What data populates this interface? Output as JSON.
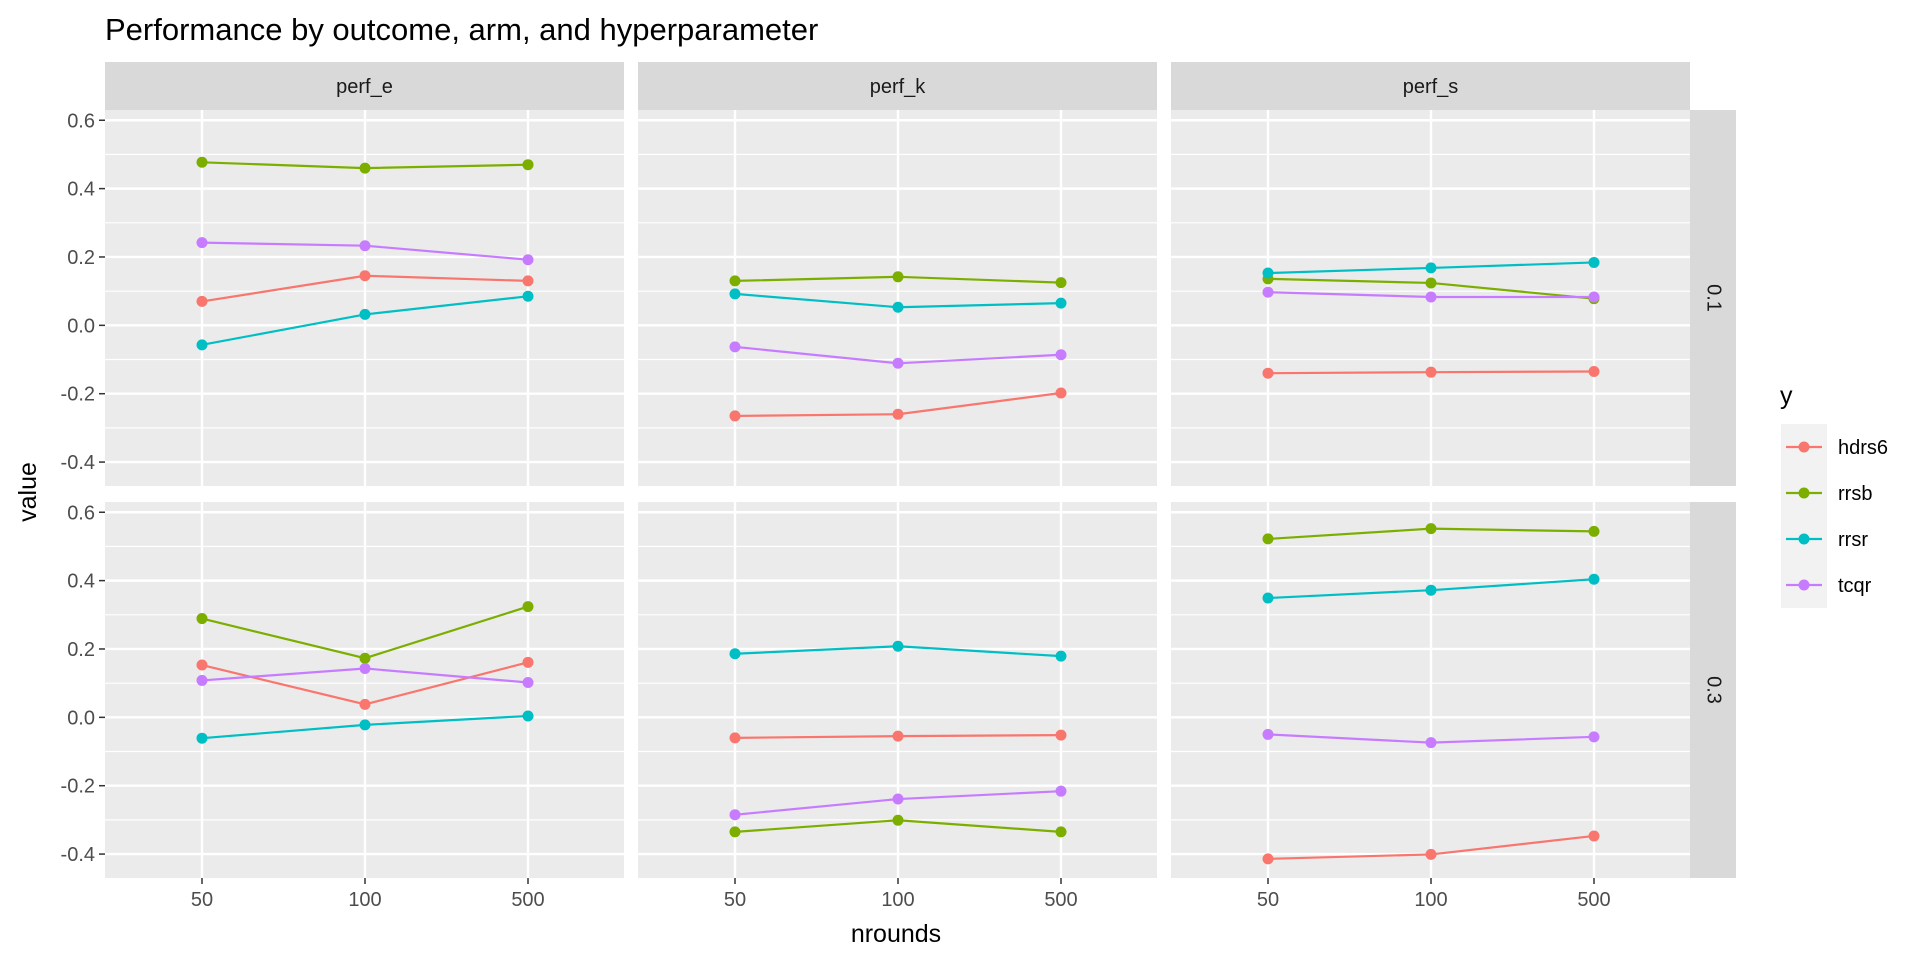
{
  "chart_data": {
    "type": "line",
    "title": "Performance by outcome, arm, and hyperparameter",
    "xlabel": "nrounds",
    "ylabel": "value",
    "x": [
      "50",
      "100",
      "500"
    ],
    "ylim": [
      -0.47,
      0.63
    ],
    "yticks": [
      "-0.4",
      "-0.2",
      "0.0",
      "0.2",
      "0.4",
      "0.6"
    ],
    "ytick_values": [
      -0.4,
      -0.2,
      0.0,
      0.2,
      0.4,
      0.6
    ],
    "grid": true,
    "legend": {
      "title": "y",
      "position": "right",
      "entries": [
        "hdrs6",
        "rrsb",
        "rrsr",
        "tcqr"
      ]
    },
    "colors": {
      "hdrs6": "#F8766D",
      "rrsb": "#7CAE00",
      "rrsr": "#00BFC4",
      "tcqr": "#C77CFF",
      "panel_bg": "#EBEBEB",
      "strip_bg": "#D9D9D9",
      "grid": "#FFFFFF"
    },
    "col_facets": [
      "perf_e",
      "perf_k",
      "perf_s"
    ],
    "row_facets": [
      "0.1",
      "0.3"
    ],
    "panels": [
      {
        "col": "perf_e",
        "row": "0.1",
        "series": [
          {
            "name": "hdrs6",
            "values": [
              0.07,
              0.145,
              0.13
            ]
          },
          {
            "name": "rrsb",
            "values": [
              0.477,
              0.46,
              0.47
            ]
          },
          {
            "name": "rrsr",
            "values": [
              -0.057,
              0.032,
              0.085
            ]
          },
          {
            "name": "tcqr",
            "values": [
              0.242,
              0.233,
              0.192
            ]
          }
        ]
      },
      {
        "col": "perf_k",
        "row": "0.1",
        "series": [
          {
            "name": "hdrs6",
            "values": [
              -0.265,
              -0.26,
              -0.198
            ]
          },
          {
            "name": "rrsb",
            "values": [
              0.13,
              0.142,
              0.125
            ]
          },
          {
            "name": "rrsr",
            "values": [
              0.092,
              0.053,
              0.065
            ]
          },
          {
            "name": "tcqr",
            "values": [
              -0.063,
              -0.111,
              -0.086
            ]
          }
        ]
      },
      {
        "col": "perf_s",
        "row": "0.1",
        "series": [
          {
            "name": "hdrs6",
            "values": [
              -0.14,
              -0.137,
              -0.135
            ]
          },
          {
            "name": "rrsb",
            "values": [
              0.136,
              0.124,
              0.078
            ]
          },
          {
            "name": "rrsr",
            "values": [
              0.153,
              0.168,
              0.184
            ]
          },
          {
            "name": "tcqr",
            "values": [
              0.097,
              0.083,
              0.083
            ]
          }
        ]
      },
      {
        "col": "perf_e",
        "row": "0.3",
        "series": [
          {
            "name": "hdrs6",
            "values": [
              0.153,
              0.038,
              0.161
            ]
          },
          {
            "name": "rrsb",
            "values": [
              0.289,
              0.173,
              0.324
            ]
          },
          {
            "name": "rrsr",
            "values": [
              -0.061,
              -0.022,
              0.004
            ]
          },
          {
            "name": "tcqr",
            "values": [
              0.108,
              0.143,
              0.102
            ]
          }
        ]
      },
      {
        "col": "perf_k",
        "row": "0.3",
        "series": [
          {
            "name": "hdrs6",
            "values": [
              -0.06,
              -0.055,
              -0.052
            ]
          },
          {
            "name": "rrsb",
            "values": [
              -0.335,
              -0.301,
              -0.335
            ]
          },
          {
            "name": "rrsr",
            "values": [
              0.186,
              0.208,
              0.179
            ]
          },
          {
            "name": "tcqr",
            "values": [
              -0.285,
              -0.239,
              -0.216
            ]
          }
        ]
      },
      {
        "col": "perf_s",
        "row": "0.3",
        "series": [
          {
            "name": "hdrs6",
            "values": [
              -0.414,
              -0.401,
              -0.347
            ]
          },
          {
            "name": "rrsb",
            "values": [
              0.522,
              0.552,
              0.544
            ]
          },
          {
            "name": "rrsr",
            "values": [
              0.349,
              0.372,
              0.404
            ]
          },
          {
            "name": "tcqr",
            "values": [
              -0.05,
              -0.074,
              -0.057
            ]
          }
        ]
      }
    ]
  }
}
